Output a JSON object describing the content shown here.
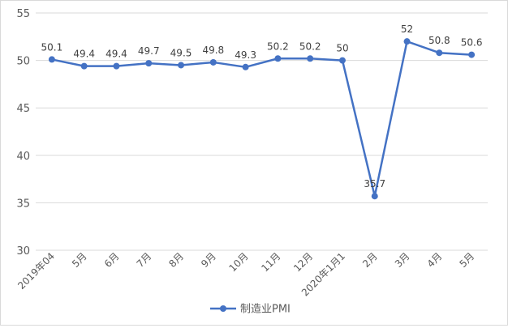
{
  "chart_data": {
    "type": "line",
    "title": "",
    "xlabel": "",
    "ylabel": "",
    "categories": [
      "2019年04",
      "5月",
      "6月",
      "7月",
      "8月",
      "9月",
      "10月",
      "11月",
      "12月",
      "2020年1月1",
      "2月",
      "3月",
      "4月",
      "5月"
    ],
    "series": [
      {
        "name": "制造业PMI",
        "values": [
          50.1,
          49.4,
          49.4,
          49.7,
          49.5,
          49.8,
          49.3,
          50.2,
          50.2,
          50,
          35.7,
          52,
          50.8,
          50.6
        ],
        "labels": [
          "50.1",
          "49.4",
          "49.4",
          "49.7",
          "49.5",
          "49.8",
          "49.3",
          "50.2",
          "50.2",
          "50",
          "35.7",
          "52",
          "50.8",
          "50.6"
        ],
        "color": "#4472C4"
      }
    ],
    "ylim": [
      30,
      55
    ],
    "yticks": [
      30,
      35,
      40,
      45,
      50,
      55
    ],
    "grid": true,
    "legend_position": "bottom"
  }
}
